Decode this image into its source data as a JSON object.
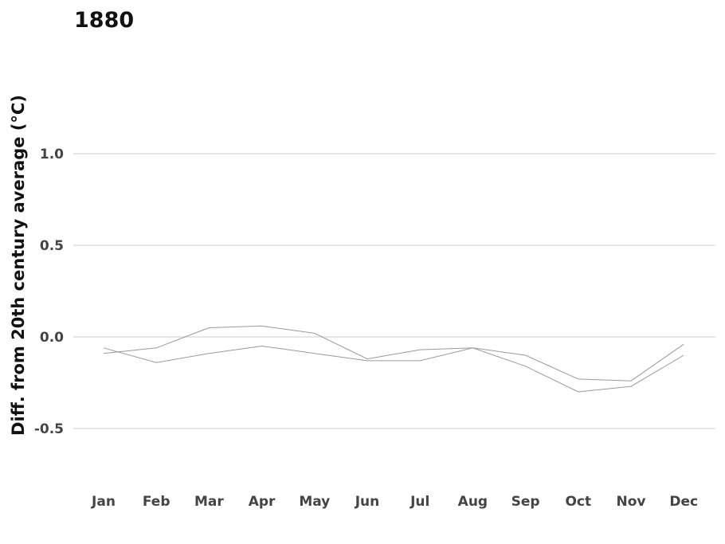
{
  "chart_data": {
    "type": "line",
    "title": "1880",
    "xlabel": "",
    "ylabel": "Diff. from 20th century average (°C)",
    "categories": [
      "Jan",
      "Feb",
      "Mar",
      "Apr",
      "May",
      "Jun",
      "Jul",
      "Aug",
      "Sep",
      "Oct",
      "Nov",
      "Dec"
    ],
    "yticks": [
      1.0,
      0.5,
      0.0,
      -0.5
    ],
    "ytick_labels": [
      "1.0",
      "0.5",
      "0.0",
      "-0.5"
    ],
    "ylim": [
      -0.7,
      1.15
    ],
    "grid": true,
    "series": [
      {
        "values": [
          -0.09,
          -0.06,
          0.05,
          0.06,
          0.02,
          -0.12,
          -0.07,
          -0.06,
          -0.1,
          -0.23,
          -0.24,
          -0.04
        ]
      },
      {
        "values": [
          -0.06,
          -0.14,
          -0.09,
          -0.05,
          -0.09,
          -0.13,
          -0.13,
          -0.06,
          -0.16,
          -0.3,
          -0.27,
          -0.1
        ]
      }
    ],
    "colors": {
      "lines": "#9a9a9a",
      "grid": "#e6e6e6",
      "text": "#111111",
      "tick_text": "#444444"
    }
  }
}
